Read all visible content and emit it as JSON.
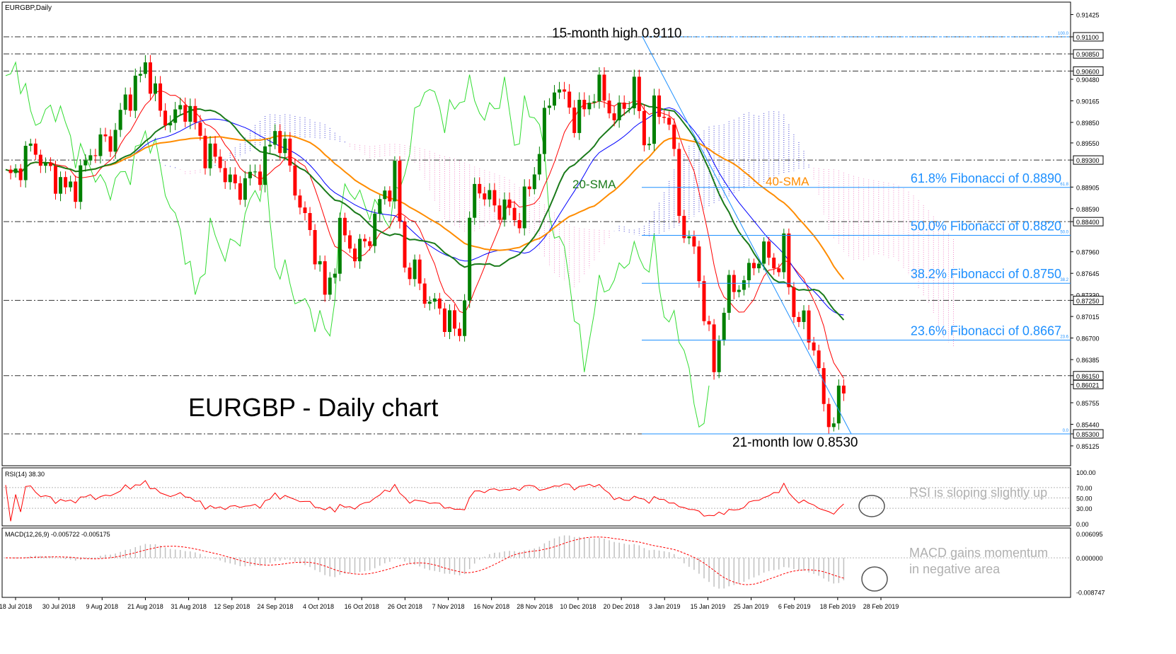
{
  "header": {
    "symbol_label": "EURGBP,Daily"
  },
  "chart_data": [
    {
      "type": "candlestick",
      "title": "EURGBP - Daily chart",
      "symbol": "EURGBP",
      "timeframe": "Daily",
      "ylim": [
        0.85125,
        0.9142
      ],
      "y_tick_labels": [
        "0.91425",
        "0.91100",
        "0.90850",
        "0.90600",
        "0.90480",
        "0.90165",
        "0.89850",
        "0.89550",
        "0.89300",
        "0.88905",
        "0.88590",
        "0.88400",
        "0.87960",
        "0.87645",
        "0.87330",
        "0.87250",
        "0.87015",
        "0.86700",
        "0.86385",
        "0.86150",
        "0.86021",
        "0.85755",
        "0.85440",
        "0.85300",
        "0.85125"
      ],
      "x_tick_labels": [
        "18 Jul 2018",
        "30 Jul 2018",
        "9 Aug 2018",
        "21 Aug 2018",
        "31 Aug 2018",
        "12 Sep 2018",
        "24 Sep 2018",
        "4 Oct 2018",
        "16 Oct 2018",
        "26 Oct 2018",
        "7 Nov 2018",
        "16 Nov 2018",
        "28 Nov 2018",
        "10 Dec 2018",
        "20 Dec 2018",
        "3 Jan 2019",
        "15 Jan 2019",
        "25 Jan 2019",
        "6 Feb 2019",
        "18 Feb 2019",
        "28 Feb 2019"
      ],
      "horizontal_levels": [
        {
          "value": 0.911,
          "label": "0.91100",
          "style": "dashdot"
        },
        {
          "value": 0.9085,
          "label": "0.90850",
          "style": "dashdot"
        },
        {
          "value": 0.906,
          "label": "0.90600",
          "style": "dashdot"
        },
        {
          "value": 0.893,
          "label": "0.89300",
          "style": "dashdot"
        },
        {
          "value": 0.884,
          "label": "0.88400",
          "style": "dashdot"
        },
        {
          "value": 0.8725,
          "label": "0.87250",
          "style": "dashdot"
        },
        {
          "value": 0.8615,
          "label": "0.86150",
          "style": "dashdot"
        },
        {
          "value": 0.853,
          "label": "0.85300",
          "style": "dashdot"
        }
      ],
      "fibonacci": [
        {
          "ratio_label": "100.0",
          "value": 0.911,
          "text": ""
        },
        {
          "ratio_label": "61.8",
          "value": 0.889,
          "text": "61.8% Fibonacci of 0.8890"
        },
        {
          "ratio_label": "50.0",
          "value": 0.882,
          "text": "50.0% Fibonacci of 0.8820"
        },
        {
          "ratio_label": "38.2",
          "value": 0.875,
          "text": "38.2% Fibonacci of 0.8750"
        },
        {
          "ratio_label": "23.6",
          "value": 0.8667,
          "text": "23.6% Fibonacci of 0.8667"
        },
        {
          "ratio_label": "0.0",
          "value": 0.853,
          "text": ""
        }
      ],
      "current_price_label": "0.86021",
      "annotations": [
        "15-month high 0.9110",
        "21-month low 0.8530",
        "20-SMA",
        "40-SMA"
      ],
      "series": [
        {
          "name": "20-SMA",
          "color": "#1a7a1a"
        },
        {
          "name": "40-SMA",
          "color": "#ff8c00"
        }
      ],
      "candle_colors": {
        "up": "#008000",
        "down": "#ff0000"
      },
      "grid": false
    },
    {
      "type": "line",
      "title": "RSI(14) 38.30",
      "ylim": [
        0,
        100
      ],
      "y_tick_labels": [
        "100.00",
        "70.00",
        "50.00",
        "30.00",
        "0.00"
      ],
      "annotation": "RSI is sloping slightly up",
      "last_value": 38.3,
      "color": "#ff0000"
    },
    {
      "type": "bar",
      "title": "MACD(12,26,9) -0.005722 -0.005175",
      "ylim": [
        -0.009,
        0.0065
      ],
      "y_tick_labels": [
        "0.006095",
        "0.000000",
        "-0.008747"
      ],
      "annotation_lines": [
        "MACD gains momentum",
        "in negative area"
      ],
      "last_values": [
        -0.005722,
        -0.005175
      ],
      "colors": {
        "histogram": "#c0c0c0",
        "signal": "#ff0000"
      }
    }
  ]
}
